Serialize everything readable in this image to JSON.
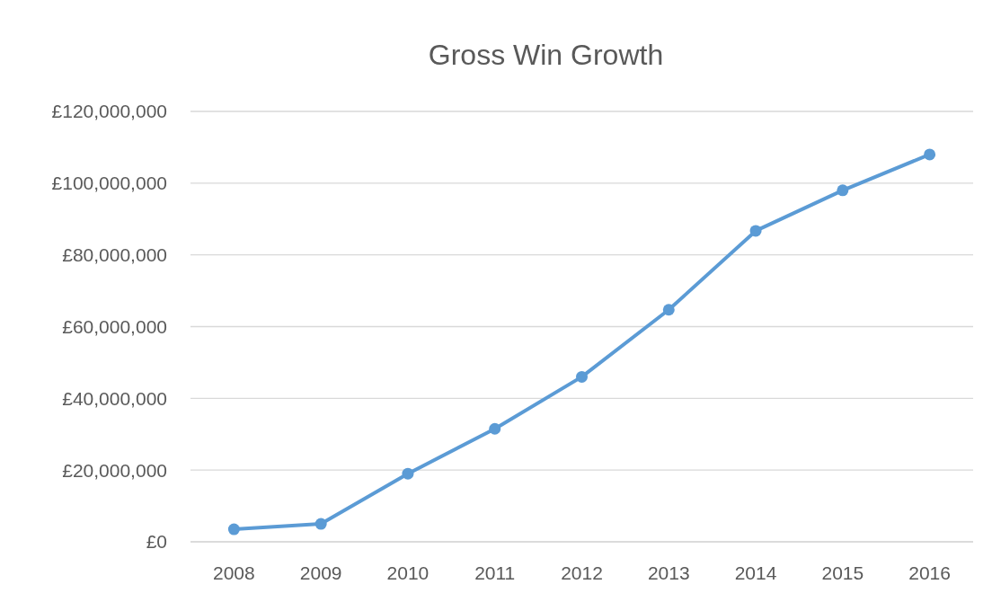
{
  "chart_data": {
    "type": "line",
    "title": "Gross Win Growth",
    "categories": [
      "2008",
      "2009",
      "2010",
      "2011",
      "2012",
      "2013",
      "2014",
      "2015",
      "2016"
    ],
    "series": [
      {
        "color": "#5b9bd5",
        "values": [
          3500000,
          5000000,
          19000000,
          31500000,
          46000000,
          64700000,
          86700000,
          98000000,
          108000000
        ]
      }
    ],
    "ylim": [
      0,
      120000000
    ],
    "yticks": [
      {
        "value": 0,
        "label": "£0"
      },
      {
        "value": 20000000,
        "label": "£20,000,000"
      },
      {
        "value": 40000000,
        "label": "£40,000,000"
      },
      {
        "value": 60000000,
        "label": "£60,000,000"
      },
      {
        "value": 80000000,
        "label": "£80,000,000"
      },
      {
        "value": 100000000,
        "label": "£100,000,000"
      },
      {
        "value": 120000000,
        "label": "£120,000,000"
      }
    ],
    "grid": "y",
    "marker": "circle",
    "line_style": "solid"
  }
}
